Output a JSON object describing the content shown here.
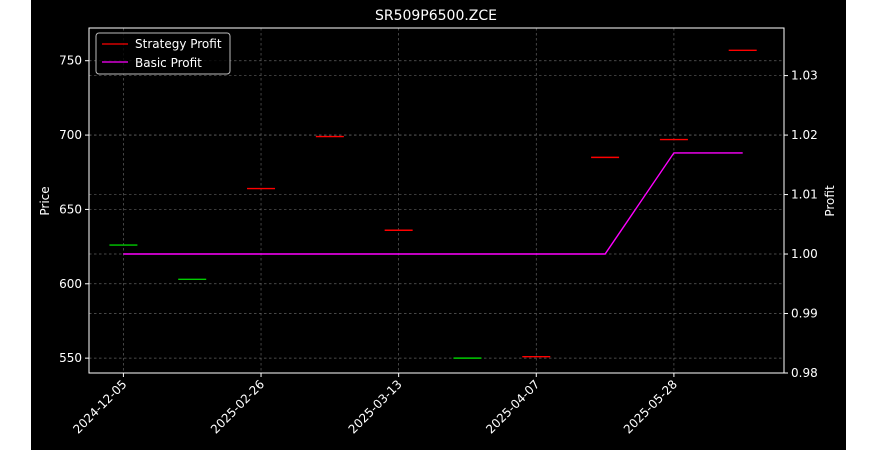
{
  "chart_data": {
    "type": "line",
    "title": "SR509P6500.ZCE",
    "y_left_label": "Price",
    "y_right_label": "Profit",
    "y_left_lim": [
      540,
      772
    ],
    "y_right_lim": [
      0.98,
      1.038
    ],
    "y_left_ticks": [
      550,
      600,
      650,
      700,
      750
    ],
    "y_right_ticks": [
      0.98,
      0.99,
      1.0,
      1.01,
      1.02,
      1.03
    ],
    "y_right_tick_labels": [
      "0.98",
      "0.99",
      "1.00",
      "1.01",
      "1.02",
      "1.03"
    ],
    "x_lim": [
      -0.25,
      4.8
    ],
    "x_tick_positions": [
      0,
      1,
      2,
      3,
      4
    ],
    "x_tick_labels": [
      "2024-12-05",
      "2025-02-26",
      "2025-03-13",
      "2025-04-07",
      "2025-05-28"
    ],
    "grid": true,
    "legend_position": "top-left",
    "legend": [
      {
        "label": "Strategy Profit",
        "color": "#ff0000"
      },
      {
        "label": "Basic Profit",
        "color": "#ff00ff"
      }
    ],
    "price_marks": [
      {
        "x": 0.0,
        "price": 626,
        "color": "#00cc00"
      },
      {
        "x": 0.5,
        "price": 603,
        "color": "#00cc00"
      },
      {
        "x": 1.0,
        "price": 664,
        "color": "#ff0000"
      },
      {
        "x": 1.5,
        "price": 699,
        "color": "#ff0000"
      },
      {
        "x": 2.0,
        "price": 636,
        "color": "#ff0000"
      },
      {
        "x": 2.5,
        "price": 550,
        "color": "#00cc00"
      },
      {
        "x": 3.0,
        "price": 551,
        "color": "#ff0000"
      },
      {
        "x": 3.5,
        "price": 685,
        "color": "#ff0000"
      },
      {
        "x": 4.0,
        "price": 697,
        "color": "#ff0000"
      },
      {
        "x": 4.5,
        "price": 757,
        "color": "#ff0000"
      }
    ],
    "series": [
      {
        "name": "Basic Profit",
        "color": "#ff00ff",
        "axis": "right",
        "x": [
          0.0,
          0.5,
          1.0,
          1.5,
          2.0,
          2.5,
          3.0,
          3.5,
          4.0,
          4.5
        ],
        "values": [
          1.0,
          1.0,
          1.0,
          1.0,
          1.0,
          1.0,
          1.0,
          1.0,
          1.017,
          1.017
        ]
      }
    ]
  }
}
